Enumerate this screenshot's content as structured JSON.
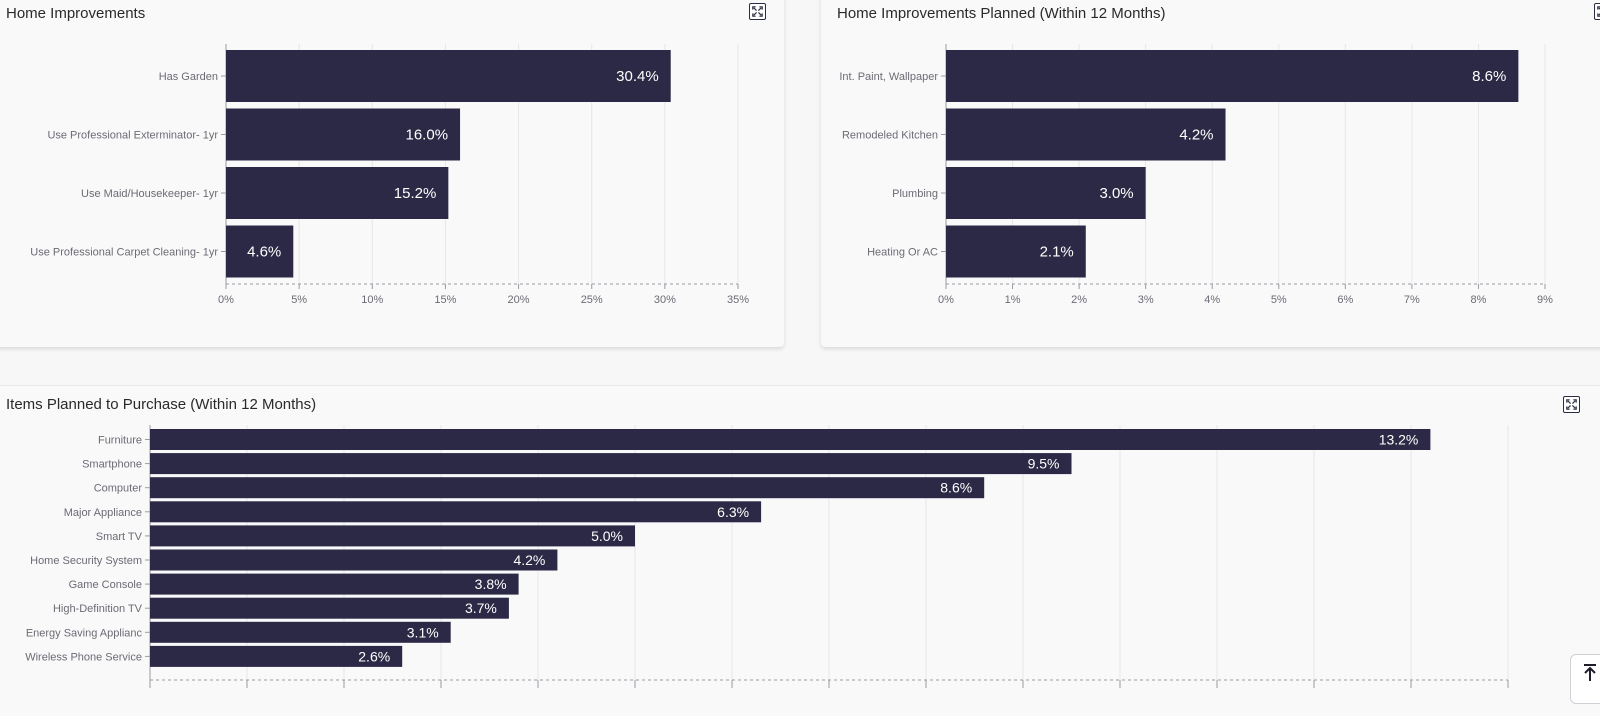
{
  "cards": {
    "home_improvements": {
      "title": "Home Improvements"
    },
    "home_improvements_planned": {
      "title": "Home Improvements Planned (Within 12 Months)"
    },
    "items_planned": {
      "title": "Items Planned to Purchase (Within 12 Months)"
    }
  },
  "icons": {
    "expand": "expand-icon",
    "scroll_top": "arrow-up-to-line-icon"
  },
  "colors": {
    "bar": "#2b2945",
    "grid": "#e6e6ea",
    "axis": "#9a9aa2"
  },
  "chart_data": [
    {
      "type": "bar",
      "orientation": "horizontal",
      "categories": [
        "Has Garden",
        "Use Professional Exterminator- 1yr",
        "Use Maid/Housekeeper- 1yr",
        "Use Professional Carpet Cleaning- 1yr"
      ],
      "values": [
        30.4,
        16.0,
        15.2,
        4.6
      ],
      "value_labels": [
        "30.4%",
        "16.0%",
        "15.2%",
        "4.6%"
      ],
      "title": "Home Improvements",
      "xlim": [
        0,
        35
      ],
      "ticks": [
        "0%",
        "5%",
        "10%",
        "15%",
        "20%",
        "25%",
        "30%",
        "35%"
      ],
      "grid": true
    },
    {
      "type": "bar",
      "orientation": "horizontal",
      "categories": [
        "Int. Paint, Wallpaper",
        "Remodeled Kitchen",
        "Plumbing",
        "Heating Or AC"
      ],
      "values": [
        8.6,
        4.2,
        3.0,
        2.1
      ],
      "value_labels": [
        "8.6%",
        "4.2%",
        "3.0%",
        "2.1%"
      ],
      "title": "Home Improvements Planned (Within 12 Months)",
      "xlim": [
        0,
        9
      ],
      "ticks": [
        "0%",
        "1%",
        "2%",
        "3%",
        "4%",
        "5%",
        "6%",
        "7%",
        "8%",
        "9%"
      ],
      "grid": true
    },
    {
      "type": "bar",
      "orientation": "horizontal",
      "categories": [
        "Furniture",
        "Smartphone",
        "Computer",
        "Major Appliance",
        "Smart TV",
        "Home Security System",
        "Game Console",
        "High-Definition TV",
        "Energy Saving Applianc",
        "Wireless Phone Service"
      ],
      "values": [
        13.2,
        9.5,
        8.6,
        6.3,
        5.0,
        4.2,
        3.8,
        3.7,
        3.1,
        2.6
      ],
      "value_labels": [
        "13.2%",
        "9.5%",
        "8.6%",
        "6.3%",
        "5.0%",
        "4.2%",
        "3.8%",
        "3.7%",
        "3.1%",
        "2.6%"
      ],
      "title": "Items Planned to Purchase (Within 12 Months)",
      "xlim": [
        0,
        14
      ],
      "grid": true
    }
  ]
}
